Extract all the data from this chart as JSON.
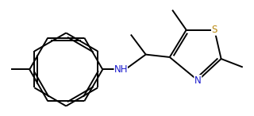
{
  "background": "#ffffff",
  "line_color": "#000000",
  "atom_colors": {
    "N": "#1a1acd",
    "S": "#b8860b",
    "C": "#000000"
  },
  "line_width": 1.4,
  "font_size": 8.5,
  "figsize": [
    3.2,
    1.46
  ],
  "dpi": 100
}
